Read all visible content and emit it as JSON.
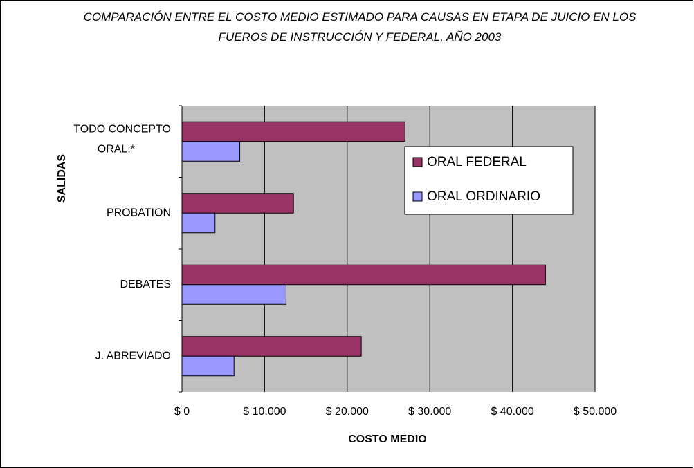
{
  "chart_data": {
    "type": "barh",
    "title": "COMPARACIÓN ENTRE EL COSTO MEDIO ESTIMADO PARA CAUSAS EN ETAPA DE JUICIO EN LOS FUEROS DE INSTRUCCIÓN Y FEDERAL, AÑO 2003",
    "xlabel": "COSTO MEDIO",
    "ylabel": "SALIDAS",
    "categories": [
      "TODO CONCEPTO ORAL:*",
      "PROBATION",
      "DEBATES",
      "J. ABREVIADO"
    ],
    "series": [
      {
        "name": "ORAL FEDERAL",
        "color": "#993366",
        "values": [
          27000,
          13500,
          44000,
          21700
        ]
      },
      {
        "name": "ORAL ORDINARIO",
        "color": "#9999ff",
        "values": [
          7000,
          4000,
          12600,
          6300
        ]
      }
    ],
    "xlim": [
      0,
      50000
    ],
    "xticks": [
      {
        "value": 0,
        "label": "$ 0"
      },
      {
        "value": 10000,
        "label": "$ 10.000"
      },
      {
        "value": 20000,
        "label": "$ 20.000"
      },
      {
        "value": 30000,
        "label": "$ 30.000"
      },
      {
        "value": 40000,
        "label": "$ 40.000"
      },
      {
        "value": 50000,
        "label": "$ 50.000"
      }
    ],
    "grid": true,
    "legend": "upper right"
  }
}
